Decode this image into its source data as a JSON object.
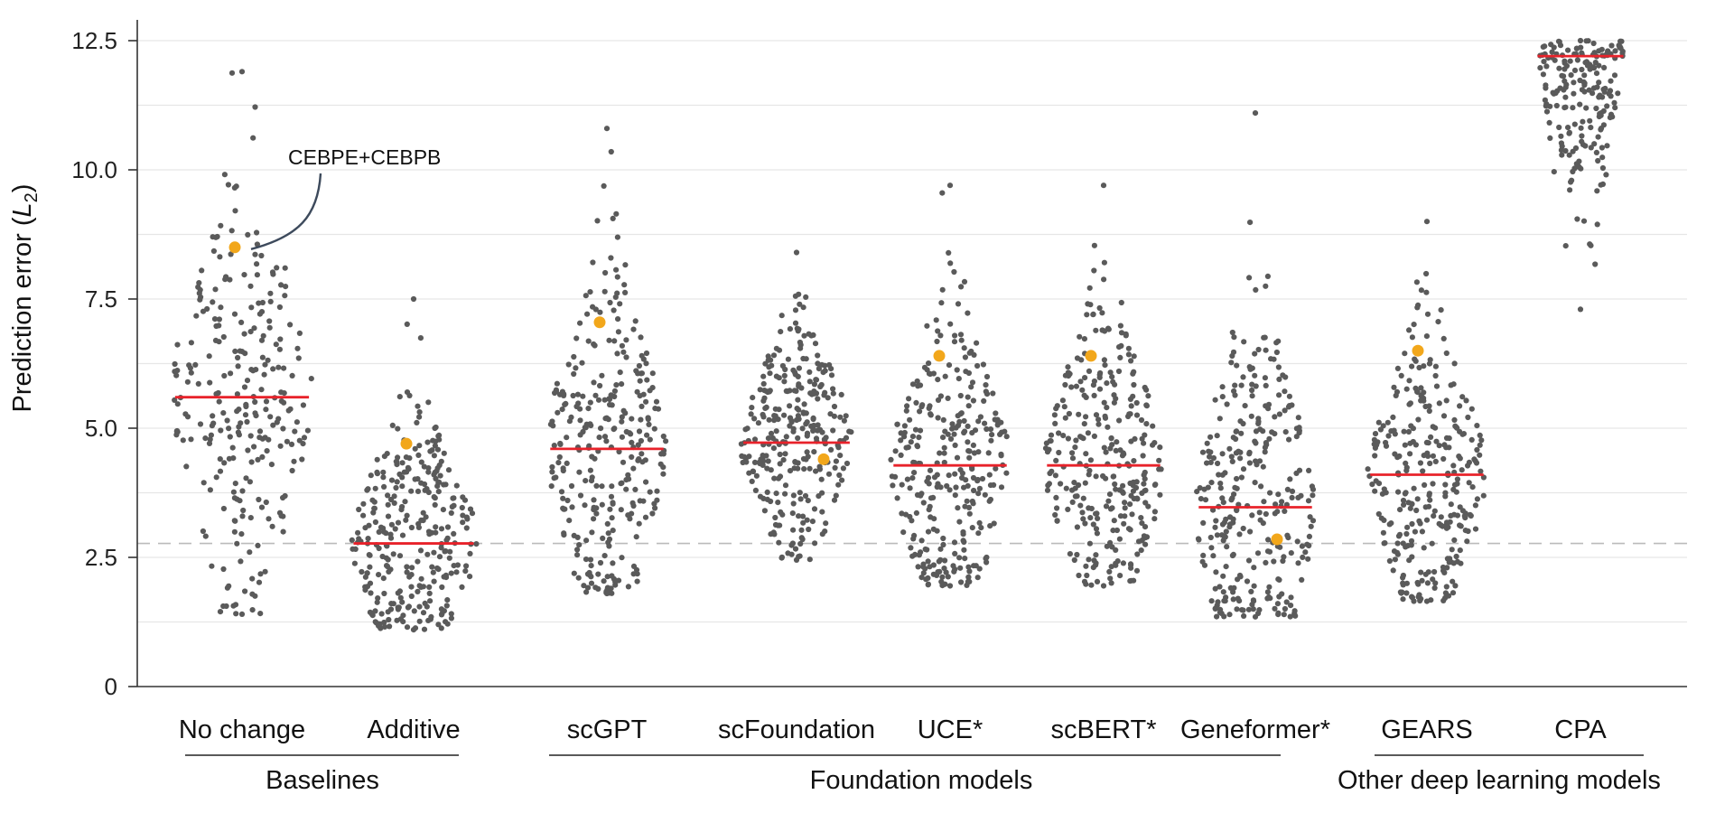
{
  "chart_data": {
    "type": "scatter",
    "subtype": "beeswarm",
    "ylabel_main": "Prediction error (",
    "ylabel_var": "L",
    "ylabel_sub": "2",
    "ylabel_close": ")",
    "ylim": [
      0,
      12.8
    ],
    "yticks": [
      0,
      2.5,
      5.0,
      7.5,
      10.0,
      12.5
    ],
    "ytick_labels": [
      "0",
      "2.5",
      "5.0",
      "7.5",
      "10.0",
      "12.5"
    ],
    "grid": true,
    "reference_line": {
      "value": 2.77,
      "style": "dashed"
    },
    "categories": [
      "No change",
      "Additive",
      "scGPT",
      "scFoundation",
      "UCE*",
      "scBERT*",
      "Geneformer*",
      "GEARS",
      "CPA"
    ],
    "groups": [
      {
        "label": "Baselines",
        "members": [
          "No change",
          "Additive"
        ]
      },
      {
        "label": "Foundation models",
        "members": [
          "scGPT",
          "scFoundation",
          "UCE*",
          "scBERT*",
          "Geneformer*"
        ]
      },
      {
        "label": "Other deep learning models",
        "members": [
          "GEARS",
          "CPA"
        ]
      }
    ],
    "series": [
      {
        "category": "No change",
        "median": 5.6,
        "highlight": 8.5,
        "min": 1.4,
        "max": 11.9,
        "n": 260
      },
      {
        "category": "Additive",
        "median": 2.77,
        "highlight": 4.7,
        "min": 1.1,
        "max": 7.5,
        "n": 300
      },
      {
        "category": "scGPT",
        "median": 4.6,
        "highlight": 7.05,
        "min": 1.8,
        "max": 10.8,
        "n": 300
      },
      {
        "category": "scFoundation",
        "median": 4.72,
        "highlight": 4.4,
        "min": 2.45,
        "max": 8.4,
        "n": 300
      },
      {
        "category": "UCE*",
        "median": 4.28,
        "highlight": 6.4,
        "min": 1.95,
        "max": 9.7,
        "n": 300
      },
      {
        "category": "scBERT*",
        "median": 4.28,
        "highlight": 6.4,
        "min": 1.95,
        "max": 9.7,
        "n": 300
      },
      {
        "category": "Geneformer*",
        "median": 3.47,
        "highlight": 2.85,
        "min": 1.35,
        "max": 11.1,
        "n": 300
      },
      {
        "category": "GEARS",
        "median": 4.1,
        "highlight": 6.5,
        "min": 1.65,
        "max": 9.0,
        "n": 300
      },
      {
        "category": "CPA",
        "median": 12.2,
        "highlight": null,
        "min": 7.3,
        "max": 12.5,
        "n": 200
      }
    ],
    "annotation": {
      "text": "CEBPE+CEBPB",
      "category": "No change",
      "value": 8.5
    },
    "colors": {
      "points": "#5a5a5a",
      "median": "#e8222a",
      "highlight": "#f2a71b",
      "grid": "#e6e6e6",
      "reference": "#bbbbbb",
      "axis": "#333333"
    }
  }
}
